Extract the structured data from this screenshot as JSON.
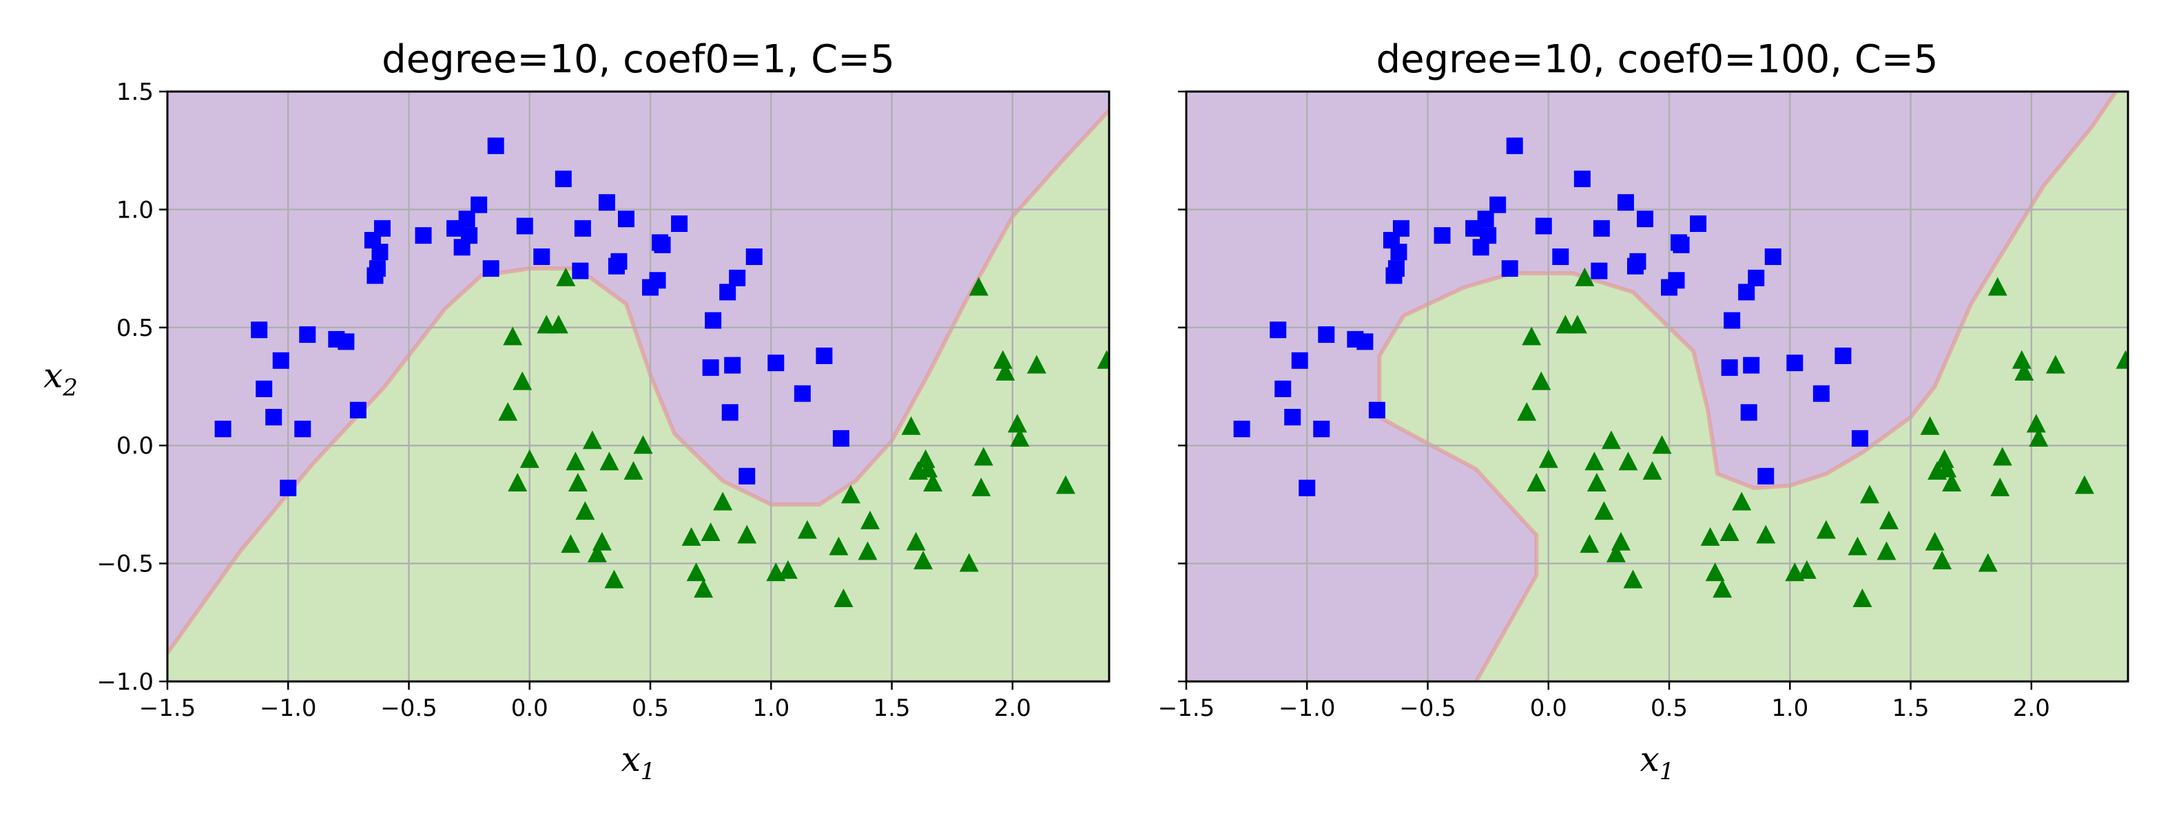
{
  "figure": {
    "colors": {
      "class_0_region": "#d2bfe0",
      "class_1_region": "#cfe6bd",
      "boundary": "#e39b9b",
      "class_0_marker": "#0000ff",
      "class_1_marker": "#008000",
      "grid": "#b0b0b0"
    }
  },
  "chart_data": [
    {
      "type": "scatter",
      "title": "degree=10, coef0=1, C=5",
      "xlabel": "x1",
      "ylabel": "x2",
      "xlim": [
        -1.5,
        2.4
      ],
      "ylim": [
        -1.0,
        1.5
      ],
      "xticks": [
        -1.5,
        -1.0,
        -0.5,
        0.0,
        0.5,
        1.0,
        1.5,
        2.0
      ],
      "xtick_labels": [
        "−1.5",
        "−1.0",
        "−0.5",
        "0.0",
        "0.5",
        "1.0",
        "1.5",
        "2.0"
      ],
      "yticks": [
        -1.0,
        -0.5,
        0.0,
        0.5,
        1.0,
        1.5
      ],
      "ytick_labels": [
        "−1.0",
        "−0.5",
        "0.0",
        "0.5",
        "1.0",
        "1.5"
      ],
      "show_ytick_labels": true,
      "grid": true,
      "decision_boundary": [
        [
          -1.5,
          -0.88
        ],
        [
          -1.2,
          -0.45
        ],
        [
          -0.9,
          -0.08
        ],
        [
          -0.6,
          0.25
        ],
        [
          -0.35,
          0.58
        ],
        [
          -0.2,
          0.72
        ],
        [
          0.0,
          0.75
        ],
        [
          0.2,
          0.75
        ],
        [
          0.4,
          0.6
        ],
        [
          0.5,
          0.3
        ],
        [
          0.6,
          0.05
        ],
        [
          0.8,
          -0.15
        ],
        [
          1.0,
          -0.25
        ],
        [
          1.2,
          -0.25
        ],
        [
          1.35,
          -0.15
        ],
        [
          1.5,
          0.02
        ],
        [
          1.65,
          0.3
        ],
        [
          1.8,
          0.6
        ],
        [
          2.0,
          0.97
        ],
        [
          2.2,
          1.2
        ],
        [
          2.4,
          1.42
        ]
      ],
      "series": [
        {
          "marker": "square",
          "points": [
            [
              -1.27,
              0.07
            ],
            [
              -1.12,
              0.49
            ],
            [
              -1.1,
              0.24
            ],
            [
              -1.06,
              0.12
            ],
            [
              -1.03,
              0.36
            ],
            [
              -1.0,
              -0.18
            ],
            [
              -0.94,
              0.07
            ],
            [
              -0.92,
              0.47
            ],
            [
              -0.8,
              0.45
            ],
            [
              -0.76,
              0.44
            ],
            [
              -0.71,
              0.15
            ],
            [
              -0.65,
              0.87
            ],
            [
              -0.64,
              0.72
            ],
            [
              -0.63,
              0.75
            ],
            [
              -0.62,
              0.82
            ],
            [
              -0.61,
              0.92
            ],
            [
              -0.44,
              0.89
            ],
            [
              -0.31,
              0.92
            ],
            [
              -0.28,
              0.84
            ],
            [
              -0.26,
              0.96
            ],
            [
              -0.25,
              0.89
            ],
            [
              -0.21,
              1.02
            ],
            [
              -0.16,
              0.75
            ],
            [
              -0.14,
              1.27
            ],
            [
              -0.02,
              0.93
            ],
            [
              0.05,
              0.8
            ],
            [
              0.14,
              1.13
            ],
            [
              0.21,
              0.74
            ],
            [
              0.22,
              0.92
            ],
            [
              0.32,
              1.03
            ],
            [
              0.36,
              0.76
            ],
            [
              0.37,
              0.78
            ],
            [
              0.4,
              0.96
            ],
            [
              0.5,
              0.67
            ],
            [
              0.53,
              0.7
            ],
            [
              0.54,
              0.86
            ],
            [
              0.55,
              0.85
            ],
            [
              0.62,
              0.94
            ],
            [
              0.75,
              0.33
            ],
            [
              0.76,
              0.53
            ],
            [
              0.82,
              0.65
            ],
            [
              0.83,
              0.14
            ],
            [
              0.84,
              0.34
            ],
            [
              0.86,
              0.71
            ],
            [
              0.9,
              -0.13
            ],
            [
              0.93,
              0.8
            ],
            [
              1.02,
              0.35
            ],
            [
              1.13,
              0.22
            ],
            [
              1.22,
              0.38
            ],
            [
              1.29,
              0.03
            ]
          ]
        },
        {
          "marker": "triangle",
          "points": [
            [
              -0.09,
              0.14
            ],
            [
              -0.07,
              0.46
            ],
            [
              -0.05,
              -0.16
            ],
            [
              -0.03,
              0.27
            ],
            [
              0.0,
              -0.06
            ],
            [
              0.07,
              0.51
            ],
            [
              0.12,
              0.51
            ],
            [
              0.15,
              0.71
            ],
            [
              0.17,
              -0.42
            ],
            [
              0.19,
              -0.07
            ],
            [
              0.2,
              -0.16
            ],
            [
              0.23,
              -0.28
            ],
            [
              0.26,
              0.02
            ],
            [
              0.28,
              -0.46
            ],
            [
              0.3,
              -0.41
            ],
            [
              0.33,
              -0.07
            ],
            [
              0.35,
              -0.57
            ],
            [
              0.43,
              -0.11
            ],
            [
              0.47,
              0.0
            ],
            [
              0.67,
              -0.39
            ],
            [
              0.69,
              -0.54
            ],
            [
              0.72,
              -0.61
            ],
            [
              0.75,
              -0.37
            ],
            [
              0.8,
              -0.24
            ],
            [
              0.9,
              -0.38
            ],
            [
              1.02,
              -0.54
            ],
            [
              1.07,
              -0.53
            ],
            [
              1.15,
              -0.36
            ],
            [
              1.28,
              -0.43
            ],
            [
              1.3,
              -0.65
            ],
            [
              1.33,
              -0.21
            ],
            [
              1.4,
              -0.45
            ],
            [
              1.41,
              -0.32
            ],
            [
              1.58,
              0.08
            ],
            [
              1.6,
              -0.41
            ],
            [
              1.61,
              -0.11
            ],
            [
              1.63,
              -0.49
            ],
            [
              1.64,
              -0.06
            ],
            [
              1.65,
              -0.1
            ],
            [
              1.67,
              -0.16
            ],
            [
              1.82,
              -0.5
            ],
            [
              1.86,
              0.67
            ],
            [
              1.87,
              -0.18
            ],
            [
              1.88,
              -0.05
            ],
            [
              1.96,
              0.36
            ],
            [
              1.97,
              0.31
            ],
            [
              2.02,
              0.09
            ],
            [
              2.03,
              0.03
            ],
            [
              2.1,
              0.34
            ],
            [
              2.22,
              -0.17
            ],
            [
              2.39,
              0.36
            ]
          ]
        }
      ]
    },
    {
      "type": "scatter",
      "title": "degree=10, coef0=100, C=5",
      "xlabel": "x1",
      "ylabel": "",
      "xlim": [
        -1.5,
        2.4
      ],
      "ylim": [
        -1.0,
        1.5
      ],
      "xticks": [
        -1.5,
        -1.0,
        -0.5,
        0.0,
        0.5,
        1.0,
        1.5,
        2.0
      ],
      "xtick_labels": [
        "−1.5",
        "−1.0",
        "−0.5",
        "0.0",
        "0.5",
        "1.0",
        "1.5",
        "2.0"
      ],
      "yticks": [
        -1.0,
        -0.5,
        0.0,
        0.5,
        1.0,
        1.5
      ],
      "ytick_labels": [],
      "show_ytick_labels": false,
      "grid": true,
      "decision_boundary": [
        [
          -0.3,
          -1.0
        ],
        [
          -0.05,
          -0.55
        ],
        [
          -0.05,
          -0.38
        ],
        [
          -0.3,
          -0.1
        ],
        [
          -0.52,
          0.02
        ],
        [
          -0.7,
          0.12
        ],
        [
          -0.7,
          0.38
        ],
        [
          -0.6,
          0.55
        ],
        [
          -0.35,
          0.67
        ],
        [
          -0.15,
          0.73
        ],
        [
          0.1,
          0.73
        ],
        [
          0.35,
          0.65
        ],
        [
          0.6,
          0.4
        ],
        [
          0.66,
          0.15
        ],
        [
          0.7,
          -0.12
        ],
        [
          0.85,
          -0.18
        ],
        [
          1.0,
          -0.17
        ],
        [
          1.15,
          -0.12
        ],
        [
          1.3,
          -0.03
        ],
        [
          1.5,
          0.12
        ],
        [
          1.6,
          0.25
        ],
        [
          1.75,
          0.6
        ],
        [
          1.9,
          0.85
        ],
        [
          2.05,
          1.1
        ],
        [
          2.25,
          1.35
        ],
        [
          2.35,
          1.5
        ]
      ],
      "boundary_closure": [
        [
          2.4,
          1.5
        ],
        [
          2.4,
          -1.0
        ]
      ],
      "series": [
        {
          "marker": "square",
          "points": [
            [
              -1.27,
              0.07
            ],
            [
              -1.12,
              0.49
            ],
            [
              -1.1,
              0.24
            ],
            [
              -1.06,
              0.12
            ],
            [
              -1.03,
              0.36
            ],
            [
              -1.0,
              -0.18
            ],
            [
              -0.94,
              0.07
            ],
            [
              -0.92,
              0.47
            ],
            [
              -0.8,
              0.45
            ],
            [
              -0.76,
              0.44
            ],
            [
              -0.71,
              0.15
            ],
            [
              -0.65,
              0.87
            ],
            [
              -0.64,
              0.72
            ],
            [
              -0.63,
              0.75
            ],
            [
              -0.62,
              0.82
            ],
            [
              -0.61,
              0.92
            ],
            [
              -0.44,
              0.89
            ],
            [
              -0.31,
              0.92
            ],
            [
              -0.28,
              0.84
            ],
            [
              -0.26,
              0.96
            ],
            [
              -0.25,
              0.89
            ],
            [
              -0.21,
              1.02
            ],
            [
              -0.16,
              0.75
            ],
            [
              -0.14,
              1.27
            ],
            [
              -0.02,
              0.93
            ],
            [
              0.05,
              0.8
            ],
            [
              0.14,
              1.13
            ],
            [
              0.21,
              0.74
            ],
            [
              0.22,
              0.92
            ],
            [
              0.32,
              1.03
            ],
            [
              0.36,
              0.76
            ],
            [
              0.37,
              0.78
            ],
            [
              0.4,
              0.96
            ],
            [
              0.5,
              0.67
            ],
            [
              0.53,
              0.7
            ],
            [
              0.54,
              0.86
            ],
            [
              0.55,
              0.85
            ],
            [
              0.62,
              0.94
            ],
            [
              0.75,
              0.33
            ],
            [
              0.76,
              0.53
            ],
            [
              0.82,
              0.65
            ],
            [
              0.83,
              0.14
            ],
            [
              0.84,
              0.34
            ],
            [
              0.86,
              0.71
            ],
            [
              0.9,
              -0.13
            ],
            [
              0.93,
              0.8
            ],
            [
              1.02,
              0.35
            ],
            [
              1.13,
              0.22
            ],
            [
              1.22,
              0.38
            ],
            [
              1.29,
              0.03
            ]
          ]
        },
        {
          "marker": "triangle",
          "points": [
            [
              -0.09,
              0.14
            ],
            [
              -0.07,
              0.46
            ],
            [
              -0.05,
              -0.16
            ],
            [
              -0.03,
              0.27
            ],
            [
              0.0,
              -0.06
            ],
            [
              0.07,
              0.51
            ],
            [
              0.12,
              0.51
            ],
            [
              0.15,
              0.71
            ],
            [
              0.17,
              -0.42
            ],
            [
              0.19,
              -0.07
            ],
            [
              0.2,
              -0.16
            ],
            [
              0.23,
              -0.28
            ],
            [
              0.26,
              0.02
            ],
            [
              0.28,
              -0.46
            ],
            [
              0.3,
              -0.41
            ],
            [
              0.33,
              -0.07
            ],
            [
              0.35,
              -0.57
            ],
            [
              0.43,
              -0.11
            ],
            [
              0.47,
              0.0
            ],
            [
              0.67,
              -0.39
            ],
            [
              0.69,
              -0.54
            ],
            [
              0.72,
              -0.61
            ],
            [
              0.75,
              -0.37
            ],
            [
              0.8,
              -0.24
            ],
            [
              0.9,
              -0.38
            ],
            [
              1.02,
              -0.54
            ],
            [
              1.07,
              -0.53
            ],
            [
              1.15,
              -0.36
            ],
            [
              1.28,
              -0.43
            ],
            [
              1.3,
              -0.65
            ],
            [
              1.33,
              -0.21
            ],
            [
              1.4,
              -0.45
            ],
            [
              1.41,
              -0.32
            ],
            [
              1.58,
              0.08
            ],
            [
              1.6,
              -0.41
            ],
            [
              1.61,
              -0.11
            ],
            [
              1.63,
              -0.49
            ],
            [
              1.64,
              -0.06
            ],
            [
              1.65,
              -0.1
            ],
            [
              1.67,
              -0.16
            ],
            [
              1.82,
              -0.5
            ],
            [
              1.86,
              0.67
            ],
            [
              1.87,
              -0.18
            ],
            [
              1.88,
              -0.05
            ],
            [
              1.96,
              0.36
            ],
            [
              1.97,
              0.31
            ],
            [
              2.02,
              0.09
            ],
            [
              2.03,
              0.03
            ],
            [
              2.1,
              0.34
            ],
            [
              2.22,
              -0.17
            ],
            [
              2.39,
              0.36
            ]
          ]
        }
      ]
    }
  ]
}
